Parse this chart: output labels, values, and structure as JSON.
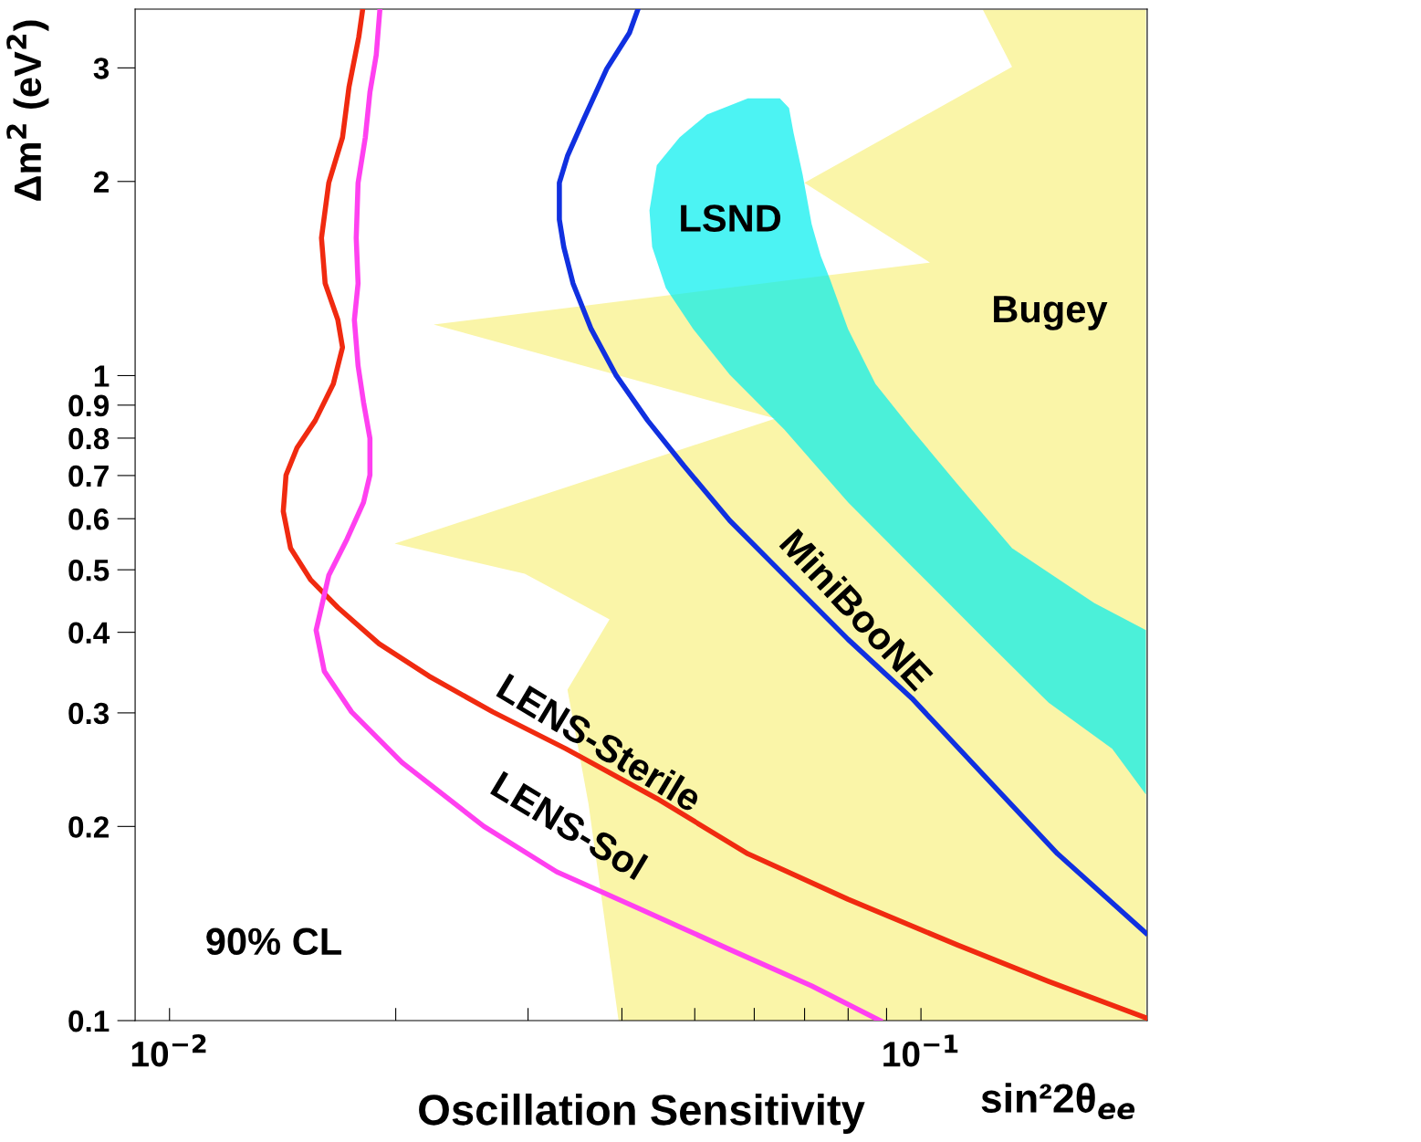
{
  "chart_data": {
    "type": "line",
    "xlabel": "Oscillation Sensitivity",
    "ylabel": "Δm$^{2}$ (eV$^{2}$)",
    "log": "xy",
    "grid": false,
    "legend": false,
    "xlim": [
      0.009,
      0.2
    ],
    "ylim": [
      0.1,
      3.7
    ],
    "xticks": [
      {
        "value": 0.01,
        "label": "10$^{−2}$"
      },
      {
        "value": 0.02,
        "label": null
      },
      {
        "value": 0.03,
        "label": null
      },
      {
        "value": 0.04,
        "label": null
      },
      {
        "value": 0.05,
        "label": null
      },
      {
        "value": 0.06,
        "label": null
      },
      {
        "value": 0.07,
        "label": null
      },
      {
        "value": 0.08,
        "label": null
      },
      {
        "value": 0.09,
        "label": null
      },
      {
        "value": 0.1,
        "label": "10$^{−1}$"
      }
    ],
    "yticks": [
      0.1,
      0.2,
      0.3,
      0.4,
      0.5,
      0.6,
      0.7,
      0.8,
      0.9,
      1,
      2,
      3
    ],
    "annotations": [
      "90% CL",
      "sin²2θ$_{ee}$"
    ],
    "series": [
      {
        "name": "Bugey",
        "type": "area",
        "color": "#faf5a8",
        "x": [
          0.1209,
          0.1322,
          0.06996,
          0.1028,
          0.02246,
          0.064,
          0.01993,
          0.0297,
          0.03851,
          0.03385,
          0.0361,
          0.03959,
          0.1992,
          0.1992
        ],
        "values": [
          3.69,
          3.01,
          1.99,
          1.497,
          1.2,
          0.858,
          0.549,
          0.493,
          0.419,
          0.326,
          0.2171,
          0.1,
          0.1,
          3.69
        ]
      },
      {
        "name": "LSND",
        "type": "area",
        "color": "#00eeee",
        "x": [
          0.05884,
          0.0649,
          0.06674,
          0.06768,
          0.06959,
          0.07154,
          0.07356,
          0.07564,
          0.07998,
          0.08698,
          0.09725,
          0.1118,
          0.1322,
          0.17,
          0.1992,
          0.1992,
          0.1797,
          0.1479,
          0.1216,
          0.09725,
          0.07998,
          0.06579,
          0.05566,
          0.04977,
          0.04576,
          0.04388,
          0.04352,
          0.04451,
          0.04773,
          0.0519
        ],
        "values": [
          2.69,
          2.69,
          2.6,
          2.38,
          2.05,
          1.717,
          1.532,
          1.412,
          1.181,
          0.971,
          0.825,
          0.679,
          0.54,
          0.444,
          0.403,
          0.2243,
          0.264,
          0.311,
          0.39,
          0.506,
          0.636,
          0.825,
          1.003,
          1.181,
          1.367,
          1.583,
          1.803,
          2.12,
          2.34,
          2.54
        ]
      },
      {
        "name": "MiniBooNE",
        "color": "#1030e0",
        "x": [
          0.04198,
          0.04093,
          0.03818,
          0.03559,
          0.03385,
          0.03302,
          0.03302,
          0.03347,
          0.03443,
          0.0364,
          0.03925,
          0.04328,
          0.04839,
          0.05566,
          0.06579,
          0.07998,
          0.09725,
          0.1216,
          0.152,
          0.1992
        ],
        "values": [
          3.69,
          3.4,
          2.99,
          2.5,
          2.19,
          1.99,
          1.746,
          1.583,
          1.39,
          1.181,
          1.003,
          0.852,
          0.724,
          0.596,
          0.49,
          0.39,
          0.316,
          0.2393,
          0.1814,
          0.1367
        ]
      },
      {
        "name": "LENS-Sterile",
        "color": "#f02a10",
        "x": [
          0.01807,
          0.01786,
          0.01733,
          0.01699,
          0.01629,
          0.01593,
          0.01611,
          0.01675,
          0.01699,
          0.01652,
          0.01563,
          0.01478,
          0.01429,
          0.01417,
          0.01449,
          0.01542,
          0.01675,
          0.019,
          0.02215,
          0.02693,
          0.03367,
          0.04451,
          0.05884,
          0.07998,
          0.1118,
          0.1479,
          0.1992
        ],
        "values": [
          3.69,
          3.35,
          2.8,
          2.34,
          1.99,
          1.635,
          1.39,
          1.22,
          1.106,
          0.971,
          0.852,
          0.773,
          0.701,
          0.616,
          0.54,
          0.482,
          0.437,
          0.384,
          0.342,
          0.301,
          0.264,
          0.221,
          0.1814,
          0.1542,
          0.131,
          0.115,
          0.101
        ]
      },
      {
        "name": "LENS-Sol",
        "color": "#ff40f0",
        "x": [
          0.01905,
          0.01884,
          0.01848,
          0.01822,
          0.01782,
          0.01772,
          0.01782,
          0.01762,
          0.01782,
          0.01812,
          0.01848,
          0.01848,
          0.01812,
          0.01723,
          0.01629,
          0.01567,
          0.01607,
          0.01747,
          0.02038,
          0.02619,
          0.03275,
          0.04208,
          0.05566,
          0.07154,
          0.08821
        ],
        "values": [
          3.69,
          3.14,
          2.75,
          2.34,
          1.99,
          1.635,
          1.39,
          1.22,
          1.036,
          0.91,
          0.799,
          0.701,
          0.636,
          0.558,
          0.49,
          0.403,
          0.348,
          0.301,
          0.2514,
          0.2001,
          0.1701,
          0.1493,
          0.1289,
          0.1132,
          0.1
        ]
      }
    ]
  }
}
